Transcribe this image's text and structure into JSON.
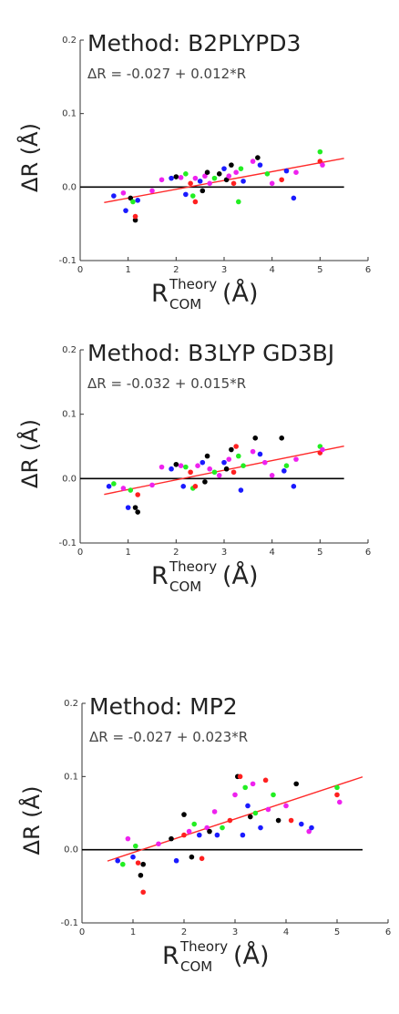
{
  "axis_text": {
    "y_label": "ΔR (Å)",
    "x_label_main": "R",
    "x_label_sup": "Theory",
    "x_label_sub": "COM",
    "x_label_unit": "(Å)"
  },
  "colors": {
    "fit_line": "#ff2a2a",
    "zero_line": "#000000",
    "point_palette": [
      "#000000",
      "#ff2020",
      "#1a1aff",
      "#22ee22",
      "#ee22ee"
    ]
  },
  "chart_data": [
    {
      "type": "scatter",
      "title": "Method: B2PLYPD3",
      "equation": "ΔR = -0.027 + 0.012*R",
      "fit": {
        "intercept": -0.027,
        "slope": 0.012,
        "x_range": [
          0.5,
          5.5
        ]
      },
      "zero_line": true,
      "xlim": [
        0,
        6
      ],
      "ylim": [
        -0.1,
        0.2
      ],
      "xticks": [
        "0",
        "1",
        "2",
        "3",
        "4",
        "5",
        "6"
      ],
      "yticks": [
        "-0.1",
        "0.0",
        "0.1",
        "0.2"
      ],
      "ytick_values": [
        -0.1,
        0.0,
        0.1,
        0.2
      ],
      "points": [
        [
          0.7,
          -0.012,
          2
        ],
        [
          0.9,
          -0.008,
          4
        ],
        [
          0.95,
          -0.032,
          2
        ],
        [
          1.05,
          -0.015,
          0
        ],
        [
          1.1,
          -0.02,
          3
        ],
        [
          1.15,
          -0.045,
          0
        ],
        [
          1.15,
          -0.04,
          1
        ],
        [
          1.2,
          -0.018,
          2
        ],
        [
          1.5,
          -0.005,
          4
        ],
        [
          1.7,
          0.01,
          4
        ],
        [
          1.9,
          0.012,
          2
        ],
        [
          2.0,
          0.014,
          0
        ],
        [
          2.1,
          0.013,
          4
        ],
        [
          2.2,
          -0.01,
          2
        ],
        [
          2.2,
          0.018,
          3
        ],
        [
          2.3,
          0.005,
          1
        ],
        [
          2.35,
          -0.012,
          3
        ],
        [
          2.4,
          -0.02,
          1
        ],
        [
          2.4,
          0.012,
          4
        ],
        [
          2.5,
          0.008,
          2
        ],
        [
          2.55,
          -0.005,
          0
        ],
        [
          2.6,
          0.015,
          4
        ],
        [
          2.65,
          0.02,
          0
        ],
        [
          2.7,
          0.005,
          4
        ],
        [
          2.8,
          0.012,
          3
        ],
        [
          2.9,
          0.018,
          0
        ],
        [
          3.0,
          0.025,
          2
        ],
        [
          3.05,
          0.01,
          0
        ],
        [
          3.1,
          0.015,
          4
        ],
        [
          3.15,
          0.03,
          0
        ],
        [
          3.2,
          0.005,
          1
        ],
        [
          3.25,
          0.02,
          4
        ],
        [
          3.3,
          -0.02,
          3
        ],
        [
          3.35,
          0.025,
          3
        ],
        [
          3.4,
          0.008,
          2
        ],
        [
          3.6,
          0.035,
          4
        ],
        [
          3.7,
          0.04,
          0
        ],
        [
          3.75,
          0.03,
          2
        ],
        [
          3.9,
          0.018,
          3
        ],
        [
          4.0,
          0.005,
          4
        ],
        [
          4.2,
          0.01,
          1
        ],
        [
          4.3,
          0.022,
          2
        ],
        [
          4.45,
          -0.015,
          2
        ],
        [
          4.5,
          0.02,
          4
        ],
        [
          5.0,
          0.048,
          3
        ],
        [
          5.0,
          0.035,
          1
        ],
        [
          5.05,
          0.03,
          4
        ]
      ]
    },
    {
      "type": "scatter",
      "title": "Method: B3LYP GD3BJ",
      "equation": "ΔR = -0.032 + 0.015*R",
      "fit": {
        "intercept": -0.032,
        "slope": 0.015,
        "x_range": [
          0.5,
          5.5
        ]
      },
      "zero_line": true,
      "xlim": [
        0,
        6
      ],
      "ylim": [
        -0.1,
        0.2
      ],
      "xticks": [
        "0",
        "1",
        "2",
        "3",
        "4",
        "5",
        "6"
      ],
      "yticks": [
        "-0.1",
        "0.0",
        "0.1",
        "0.2"
      ],
      "ytick_values": [
        -0.1,
        0.0,
        0.1,
        0.2
      ],
      "points": [
        [
          0.6,
          -0.012,
          2
        ],
        [
          0.7,
          -0.008,
          3
        ],
        [
          0.9,
          -0.015,
          4
        ],
        [
          1.0,
          -0.045,
          2
        ],
        [
          1.05,
          -0.018,
          3
        ],
        [
          1.15,
          -0.045,
          0
        ],
        [
          1.2,
          -0.052,
          0
        ],
        [
          1.2,
          -0.025,
          1
        ],
        [
          1.5,
          -0.01,
          4
        ],
        [
          1.7,
          0.018,
          4
        ],
        [
          1.9,
          0.015,
          2
        ],
        [
          2.0,
          0.022,
          0
        ],
        [
          2.1,
          0.02,
          4
        ],
        [
          2.15,
          -0.012,
          2
        ],
        [
          2.2,
          0.018,
          3
        ],
        [
          2.3,
          0.01,
          1
        ],
        [
          2.35,
          -0.015,
          3
        ],
        [
          2.4,
          -0.012,
          1
        ],
        [
          2.45,
          0.02,
          4
        ],
        [
          2.55,
          0.025,
          2
        ],
        [
          2.6,
          -0.005,
          0
        ],
        [
          2.65,
          0.035,
          0
        ],
        [
          2.7,
          0.015,
          4
        ],
        [
          2.8,
          0.01,
          3
        ],
        [
          2.9,
          0.005,
          4
        ],
        [
          3.0,
          0.025,
          2
        ],
        [
          3.05,
          0.015,
          0
        ],
        [
          3.1,
          0.03,
          4
        ],
        [
          3.15,
          0.045,
          0
        ],
        [
          3.2,
          0.01,
          1
        ],
        [
          3.25,
          0.05,
          1
        ],
        [
          3.3,
          0.035,
          3
        ],
        [
          3.35,
          -0.018,
          2
        ],
        [
          3.4,
          0.02,
          3
        ],
        [
          3.6,
          0.042,
          4
        ],
        [
          3.65,
          0.063,
          0
        ],
        [
          3.75,
          0.038,
          2
        ],
        [
          3.85,
          0.025,
          4
        ],
        [
          4.0,
          0.005,
          4
        ],
        [
          4.2,
          0.063,
          0
        ],
        [
          4.25,
          0.012,
          2
        ],
        [
          4.3,
          0.02,
          3
        ],
        [
          4.45,
          -0.012,
          2
        ],
        [
          4.5,
          0.03,
          4
        ],
        [
          5.0,
          0.05,
          3
        ],
        [
          5.0,
          0.04,
          1
        ],
        [
          5.05,
          0.045,
          4
        ]
      ]
    },
    {
      "type": "scatter",
      "title": "Method: MP2",
      "equation": "ΔR = -0.027 + 0.023*R",
      "fit": {
        "intercept": -0.027,
        "slope": 0.023,
        "x_range": [
          0.5,
          5.5
        ]
      },
      "zero_line": true,
      "xlim": [
        0,
        6
      ],
      "ylim": [
        -0.1,
        0.2
      ],
      "xticks": [
        "0",
        "1",
        "2",
        "3",
        "4",
        "5",
        "6"
      ],
      "yticks": [
        "-0.1",
        "0.0",
        "0.1",
        "0.2"
      ],
      "ytick_values": [
        -0.1,
        0.0,
        0.1,
        0.2
      ],
      "points": [
        [
          0.7,
          -0.015,
          2
        ],
        [
          0.8,
          -0.02,
          3
        ],
        [
          0.9,
          0.015,
          4
        ],
        [
          1.0,
          -0.01,
          2
        ],
        [
          1.05,
          0.005,
          3
        ],
        [
          1.1,
          -0.018,
          1
        ],
        [
          1.15,
          -0.035,
          0
        ],
        [
          1.2,
          -0.058,
          1
        ],
        [
          1.2,
          -0.02,
          0
        ],
        [
          1.5,
          0.008,
          4
        ],
        [
          1.75,
          0.015,
          0
        ],
        [
          1.85,
          -0.015,
          2
        ],
        [
          2.0,
          0.048,
          0
        ],
        [
          2.0,
          0.02,
          1
        ],
        [
          2.1,
          0.025,
          4
        ],
        [
          2.15,
          -0.01,
          0
        ],
        [
          2.2,
          0.035,
          3
        ],
        [
          2.3,
          0.02,
          2
        ],
        [
          2.35,
          -0.012,
          1
        ],
        [
          2.45,
          0.03,
          4
        ],
        [
          2.5,
          0.025,
          0
        ],
        [
          2.6,
          0.052,
          4
        ],
        [
          2.65,
          0.02,
          2
        ],
        [
          2.75,
          0.03,
          3
        ],
        [
          2.9,
          0.04,
          1
        ],
        [
          3.0,
          0.075,
          4
        ],
        [
          3.05,
          0.1,
          0
        ],
        [
          3.1,
          0.1,
          1
        ],
        [
          3.15,
          0.02,
          2
        ],
        [
          3.2,
          0.085,
          3
        ],
        [
          3.25,
          0.06,
          2
        ],
        [
          3.3,
          0.045,
          0
        ],
        [
          3.35,
          0.09,
          4
        ],
        [
          3.4,
          0.05,
          3
        ],
        [
          3.5,
          0.03,
          2
        ],
        [
          3.6,
          0.095,
          1
        ],
        [
          3.65,
          0.055,
          4
        ],
        [
          3.75,
          0.075,
          3
        ],
        [
          3.85,
          0.04,
          0
        ],
        [
          4.0,
          0.06,
          4
        ],
        [
          4.1,
          0.04,
          1
        ],
        [
          4.2,
          0.09,
          0
        ],
        [
          4.3,
          0.035,
          2
        ],
        [
          4.45,
          0.025,
          4
        ],
        [
          4.5,
          0.03,
          2
        ],
        [
          5.0,
          0.085,
          3
        ],
        [
          5.0,
          0.075,
          1
        ],
        [
          5.05,
          0.065,
          4
        ]
      ]
    }
  ]
}
